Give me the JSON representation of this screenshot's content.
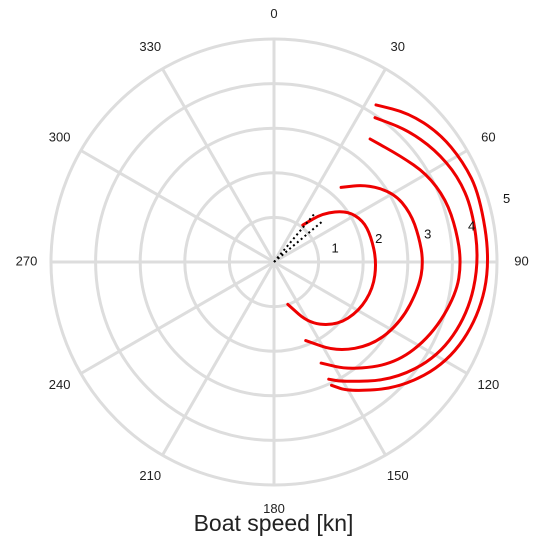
{
  "chart_data": {
    "type": "line",
    "subtype": "polar",
    "xlabel": "Boat speed [kn]",
    "angle_ticks": [
      "0",
      "30",
      "60",
      "90",
      "120",
      "150",
      "180",
      "210",
      "240",
      "270",
      "300",
      "330"
    ],
    "angle_tick_values": [
      0,
      30,
      60,
      90,
      120,
      150,
      180,
      210,
      240,
      270,
      300,
      330
    ],
    "radial_ticks": [
      1,
      2,
      3,
      4,
      5
    ],
    "radial_range": [
      0,
      5
    ],
    "angle_range": [
      0,
      360
    ],
    "angular_direction": "clockwise",
    "zero_angle": "top",
    "grid": true,
    "legend": "none",
    "colors": {
      "series": "#ee0000",
      "dotted": "#000000",
      "grid": "#dddddd"
    },
    "series": [
      {
        "angles": [
          38,
          45,
          55,
          65,
          75,
          90,
          105,
          120,
          135,
          150,
          162
        ],
        "values": [
          1.05,
          1.55,
          2.0,
          2.2,
          2.25,
          2.3,
          2.3,
          2.2,
          2.0,
          1.6,
          1.0
        ]
      },
      {
        "angles": [
          42,
          50,
          60,
          70,
          80,
          90,
          100,
          115,
          130,
          145,
          158
        ],
        "values": [
          2.25,
          2.7,
          3.1,
          3.25,
          3.3,
          3.35,
          3.3,
          3.15,
          2.9,
          2.45,
          1.9
        ]
      },
      {
        "angles": [
          38,
          50,
          60,
          70,
          80,
          90,
          100,
          115,
          130,
          145,
          155
        ],
        "values": [
          3.5,
          3.7,
          3.95,
          4.1,
          4.15,
          4.2,
          4.15,
          3.9,
          3.55,
          2.95,
          2.5
        ]
      },
      {
        "angles": [
          35,
          45,
          55,
          65,
          75,
          90,
          105,
          120,
          135,
          150,
          155
        ],
        "values": [
          3.95,
          4.2,
          4.4,
          4.55,
          4.6,
          4.6,
          4.5,
          4.25,
          3.75,
          3.1,
          2.9
        ]
      },
      {
        "angles": [
          33,
          42,
          52,
          62,
          72,
          90,
          105,
          120,
          135,
          150,
          155
        ],
        "values": [
          4.2,
          4.5,
          4.7,
          4.8,
          4.85,
          4.85,
          4.75,
          4.5,
          4.0,
          3.35,
          3.05
        ]
      }
    ],
    "dotted_lines": [
      {
        "angles": [
          0,
          40
        ],
        "values": [
          0,
          1.45
        ]
      },
      {
        "angles": [
          0,
          50
        ],
        "values": [
          0,
          1.45
        ]
      }
    ],
    "point_labels": [
      {
        "text": "1",
        "angle": 78,
        "value": 1.4
      },
      {
        "text": "2",
        "angle": 78,
        "value": 2.4
      },
      {
        "text": "3",
        "angle": 80,
        "value": 3.5
      },
      {
        "text": "4",
        "angle": 80,
        "value": 4.5
      },
      {
        "text": "5",
        "angle": 75,
        "value": 5.4
      }
    ]
  }
}
